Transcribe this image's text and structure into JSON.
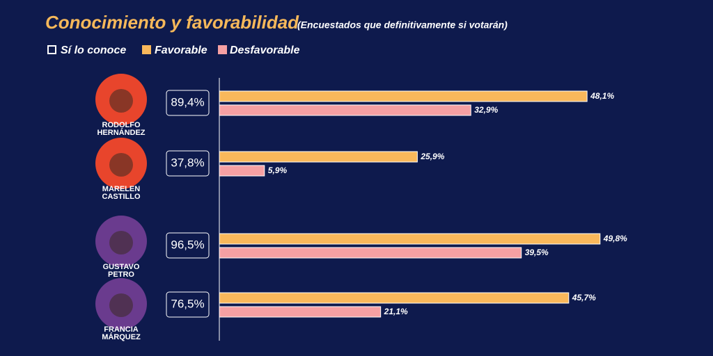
{
  "chart_data": {
    "type": "bar",
    "orientation": "horizontal",
    "title": "Conocimiento y favorabilidad",
    "subtitle": "(Encuestados que definitivamente si votarán)",
    "categories": [
      "RODOLFO HERNÁNDEZ",
      "MARELEN CASTILLO",
      "GUSTAVO PETRO",
      "FRANCIA MÁRQUEZ"
    ],
    "series": [
      {
        "name": "Sí lo conoce",
        "color": "#ffffff",
        "values": [
          89.4,
          37.8,
          96.5,
          76.5
        ],
        "value_labels": [
          "89,4%",
          "37,8%",
          "96,5%",
          "76,5%"
        ]
      },
      {
        "name": "Favorable",
        "color": "#f9b85b",
        "values": [
          48.1,
          25.9,
          49.8,
          45.7
        ],
        "value_labels": [
          "48,1%",
          "25,9%",
          "49,8%",
          "45,7%"
        ]
      },
      {
        "name": "Desfavorable",
        "color": "#f6a0a3",
        "values": [
          32.9,
          5.9,
          39.5,
          21.1
        ],
        "value_labels": [
          "32,9%",
          "5,9%",
          "39,5%",
          "21,1%"
        ]
      }
    ]
  }
}
